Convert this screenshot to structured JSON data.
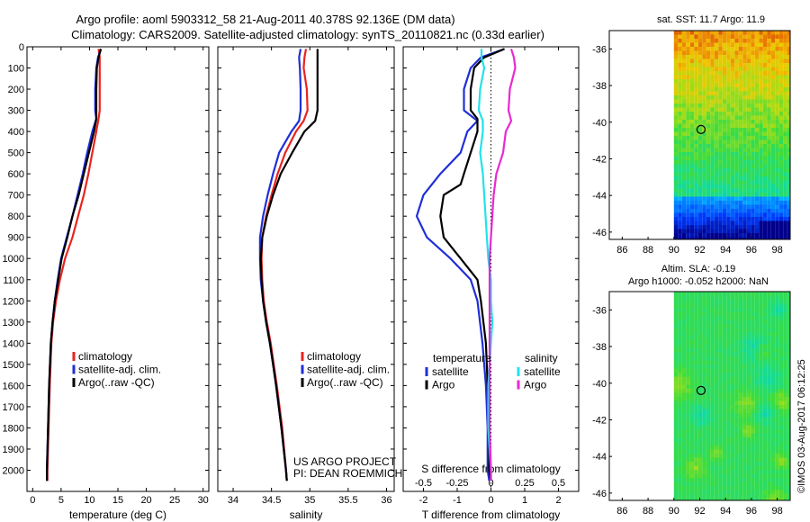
{
  "header": {
    "title_line1": "Argo profile: aoml 5903312_58 21-Aug-2011 40.378S 92.136E (DM data)",
    "title_line2": "Climatology: CARS2009. Satellite-adjusted climatology: synTS_20110821.nc (0.33d earlier)"
  },
  "colors": {
    "climatology": "#e8241f",
    "satellite": "#1f2fd8",
    "argo": "#000000",
    "sat_salinity": "#22e3ea",
    "argo_salinity": "#e82ad0"
  },
  "chart_data": [
    {
      "type": "line",
      "name": "temperature",
      "xlabel": "temperature (deg C)",
      "ylim": [
        2100,
        0
      ],
      "xlim": [
        -1,
        31
      ],
      "xticks": [
        0,
        5,
        10,
        15,
        20,
        25,
        30
      ],
      "yticks": [
        0,
        100,
        200,
        300,
        400,
        500,
        600,
        700,
        800,
        900,
        1000,
        1100,
        1200,
        1300,
        1400,
        1500,
        1600,
        1700,
        1800,
        1900,
        2000
      ],
      "legend": [
        "climatology",
        "satellite-adj. clim.",
        "Argo(..raw -QC)"
      ],
      "series": [
        {
          "name": "climatology",
          "color": "#e8241f",
          "depth": [
            10,
            50,
            100,
            200,
            300,
            340,
            400,
            500,
            600,
            700,
            800,
            900,
            1000,
            1100,
            1200,
            1300,
            1400,
            1600,
            1800,
            2000,
            2050
          ],
          "values": [
            11.6,
            11.8,
            11.8,
            11.8,
            11.8,
            11.6,
            11.2,
            10.5,
            9.8,
            9.0,
            8.0,
            7.0,
            5.7,
            4.8,
            4.1,
            3.6,
            3.3,
            3.0,
            2.8,
            2.6,
            2.6
          ]
        },
        {
          "name": "satellite-adj. clim.",
          "color": "#1f2fd8",
          "depth": [
            10,
            50,
            100,
            200,
            300,
            340,
            400,
            500,
            600,
            700,
            800,
            900,
            1000,
            1100,
            1200,
            1300,
            1400,
            1600,
            1800,
            2000,
            2050
          ],
          "values": [
            12.0,
            11.5,
            11.2,
            11.0,
            11.0,
            11.2,
            10.5,
            9.6,
            8.8,
            7.9,
            7.0,
            6.0,
            5.0,
            4.4,
            3.9,
            3.5,
            3.2,
            2.9,
            2.7,
            2.5,
            2.5
          ]
        },
        {
          "name": "Argo(..raw -QC)",
          "color": "#000000",
          "depth": [
            10,
            50,
            100,
            200,
            300,
            340,
            400,
            500,
            600,
            700,
            800,
            900,
            1000,
            1100,
            1200,
            1300,
            1400,
            1600,
            1800,
            2000,
            2050
          ],
          "values": [
            12.0,
            11.6,
            11.3,
            11.2,
            11.2,
            11.2,
            10.8,
            9.9,
            9.0,
            8.1,
            7.0,
            6.1,
            5.1,
            4.5,
            3.9,
            3.5,
            3.2,
            2.9,
            2.7,
            2.5,
            2.5
          ]
        }
      ]
    },
    {
      "type": "line",
      "name": "salinity",
      "xlabel": "salinity",
      "ylim": [
        2100,
        0
      ],
      "xlim": [
        33.8,
        36.1
      ],
      "xticks": [
        34,
        34.5,
        35,
        35.5,
        36
      ],
      "xticklabels": [
        "34",
        "34.5",
        "35",
        "35.5",
        "36"
      ],
      "legend": [
        "climatology",
        "satellite-adj. clim.",
        "Argo(..raw -QC)"
      ],
      "annotation": [
        "US ARGO PROJECT",
        "PI: DEAN ROEMMICH"
      ],
      "series": [
        {
          "name": "climatology",
          "color": "#e8241f",
          "depth": [
            10,
            50,
            100,
            200,
            300,
            350,
            400,
            500,
            600,
            700,
            800,
            900,
            1000,
            1100,
            1200,
            1300,
            1400,
            1500,
            1600,
            1800,
            2000,
            2050
          ],
          "values": [
            34.95,
            34.93,
            34.92,
            34.96,
            34.97,
            34.92,
            34.82,
            34.68,
            34.58,
            34.5,
            34.43,
            34.38,
            34.37,
            34.38,
            34.4,
            34.44,
            34.49,
            34.53,
            34.57,
            34.64,
            34.69,
            34.7
          ]
        },
        {
          "name": "satellite-adj. clim.",
          "color": "#1f2fd8",
          "depth": [
            10,
            50,
            100,
            200,
            300,
            350,
            400,
            500,
            600,
            700,
            800,
            900,
            1000,
            1100,
            1200,
            1300,
            1400,
            1500,
            1600,
            1800,
            2000,
            2050
          ],
          "values": [
            34.88,
            34.86,
            34.87,
            34.88,
            34.88,
            34.86,
            34.76,
            34.6,
            34.52,
            34.45,
            34.39,
            34.35,
            34.35,
            34.36,
            34.39,
            34.43,
            34.48,
            34.52,
            34.56,
            34.63,
            34.69,
            34.7
          ]
        },
        {
          "name": "Argo(..raw -QC)",
          "color": "#000000",
          "depth": [
            10,
            50,
            100,
            200,
            300,
            350,
            400,
            500,
            600,
            700,
            800,
            900,
            1000,
            1100,
            1200,
            1300,
            1400,
            1500,
            1600,
            1800,
            2000,
            2050
          ],
          "values": [
            35.1,
            35.1,
            35.1,
            35.1,
            35.1,
            35.07,
            34.93,
            34.77,
            34.62,
            34.52,
            34.44,
            34.38,
            34.36,
            34.37,
            34.39,
            34.43,
            34.48,
            34.52,
            34.56,
            34.63,
            34.69,
            34.7
          ]
        }
      ]
    },
    {
      "type": "line",
      "name": "differences",
      "xlabel": "T difference from climatology",
      "xlabel_top": "S difference from climatology",
      "ylim": [
        2100,
        0
      ],
      "xlim": [
        -2.6,
        2.6
      ],
      "xticks": [
        -2,
        -1,
        0,
        1,
        2
      ],
      "sticks": [
        -0.5,
        -0.25,
        0,
        0.25,
        0.5
      ],
      "sticklabels": [
        "-0.5",
        "-0.25",
        "0",
        "0.25",
        "0.5"
      ],
      "legend_temperature_title": "temperature",
      "legend_salinity_title": "salinity",
      "legend_temperature": [
        "satellite",
        "Argo"
      ],
      "legend_salinity": [
        "satellite",
        "Argo"
      ],
      "series": [
        {
          "name": "T satellite",
          "color": "#1f2fd8",
          "depth": [
            10,
            50,
            100,
            200,
            300,
            350,
            400,
            500,
            600,
            700,
            800,
            900,
            1000,
            1100,
            1200,
            1400,
            1600,
            1800,
            2000,
            2050
          ],
          "values": [
            0.4,
            -0.3,
            -0.6,
            -0.8,
            -0.8,
            -0.4,
            -0.7,
            -0.9,
            -1.5,
            -2.0,
            -2.2,
            -1.9,
            -1.2,
            -0.6,
            -0.4,
            -0.25,
            -0.15,
            -0.1,
            -0.1,
            -0.05
          ]
        },
        {
          "name": "T Argo",
          "color": "#000000",
          "depth": [
            10,
            50,
            100,
            200,
            300,
            340,
            400,
            500,
            600,
            650,
            700,
            800,
            900,
            1000,
            1100,
            1200,
            1400,
            1600,
            1800,
            2000,
            2050
          ],
          "values": [
            0.4,
            -0.2,
            -0.5,
            -0.6,
            -0.6,
            -0.4,
            -0.4,
            -0.6,
            -0.8,
            -0.9,
            -1.4,
            -1.5,
            -1.4,
            -0.9,
            -0.4,
            -0.3,
            -0.15,
            -0.1,
            -0.05,
            -0.05,
            0
          ]
        },
        {
          "name": "S satellite",
          "color": "#22e3ea",
          "depth": [
            10,
            50,
            100,
            200,
            300,
            350,
            400,
            500,
            600,
            700,
            800,
            900,
            1000,
            1100,
            1200,
            1300,
            1400,
            1600,
            1800,
            2000,
            2050
          ],
          "values": [
            -0.07,
            -0.07,
            -0.05,
            -0.08,
            -0.09,
            -0.06,
            -0.06,
            -0.08,
            -0.06,
            -0.05,
            -0.04,
            -0.03,
            -0.02,
            0.0,
            0.0,
            0.01,
            0.0,
            -0.02,
            -0.02,
            0.0,
            0.0
          ]
        },
        {
          "name": "S Argo",
          "color": "#e82ad0",
          "depth": [
            10,
            50,
            100,
            200,
            300,
            350,
            400,
            500,
            600,
            700,
            800,
            900,
            1000,
            1100,
            1200,
            1400,
            1600,
            1800,
            2000,
            2050
          ],
          "values": [
            0.15,
            0.17,
            0.18,
            0.14,
            0.13,
            0.15,
            0.11,
            0.09,
            0.04,
            0.02,
            0.01,
            0.0,
            -0.01,
            -0.01,
            -0.01,
            -0.01,
            -0.01,
            -0.01,
            0.0,
            0.0
          ]
        }
      ]
    },
    {
      "type": "heatmap",
      "name": "sst_map",
      "title": "sat. SST: 11.7 Argo: 11.9",
      "xticks": [
        86,
        88,
        90,
        92,
        94,
        96,
        98
      ],
      "yticks": [
        -36,
        -38,
        -40,
        -42,
        -44,
        -46
      ],
      "xlim": [
        85,
        99
      ],
      "ylim": [
        -46.4,
        -35
      ],
      "data_lon_start": 90,
      "marker": [
        92.1,
        -40.4
      ]
    },
    {
      "type": "heatmap",
      "name": "sla_map",
      "title_line1": "Altim. SLA: -0.19",
      "title_line2": "Argo h1000: -0.052 h2000: NaN",
      "xticks": [
        86,
        88,
        90,
        92,
        94,
        96,
        98
      ],
      "yticks": [
        -36,
        -38,
        -40,
        -42,
        -44,
        -46
      ],
      "xlim": [
        85,
        99
      ],
      "ylim": [
        -46.4,
        -35
      ],
      "data_lon_start": 90,
      "marker": [
        92.1,
        -40.4
      ]
    }
  ],
  "footer": {
    "stamp": "©IMOS 03-Aug-2017 06:12:25"
  }
}
